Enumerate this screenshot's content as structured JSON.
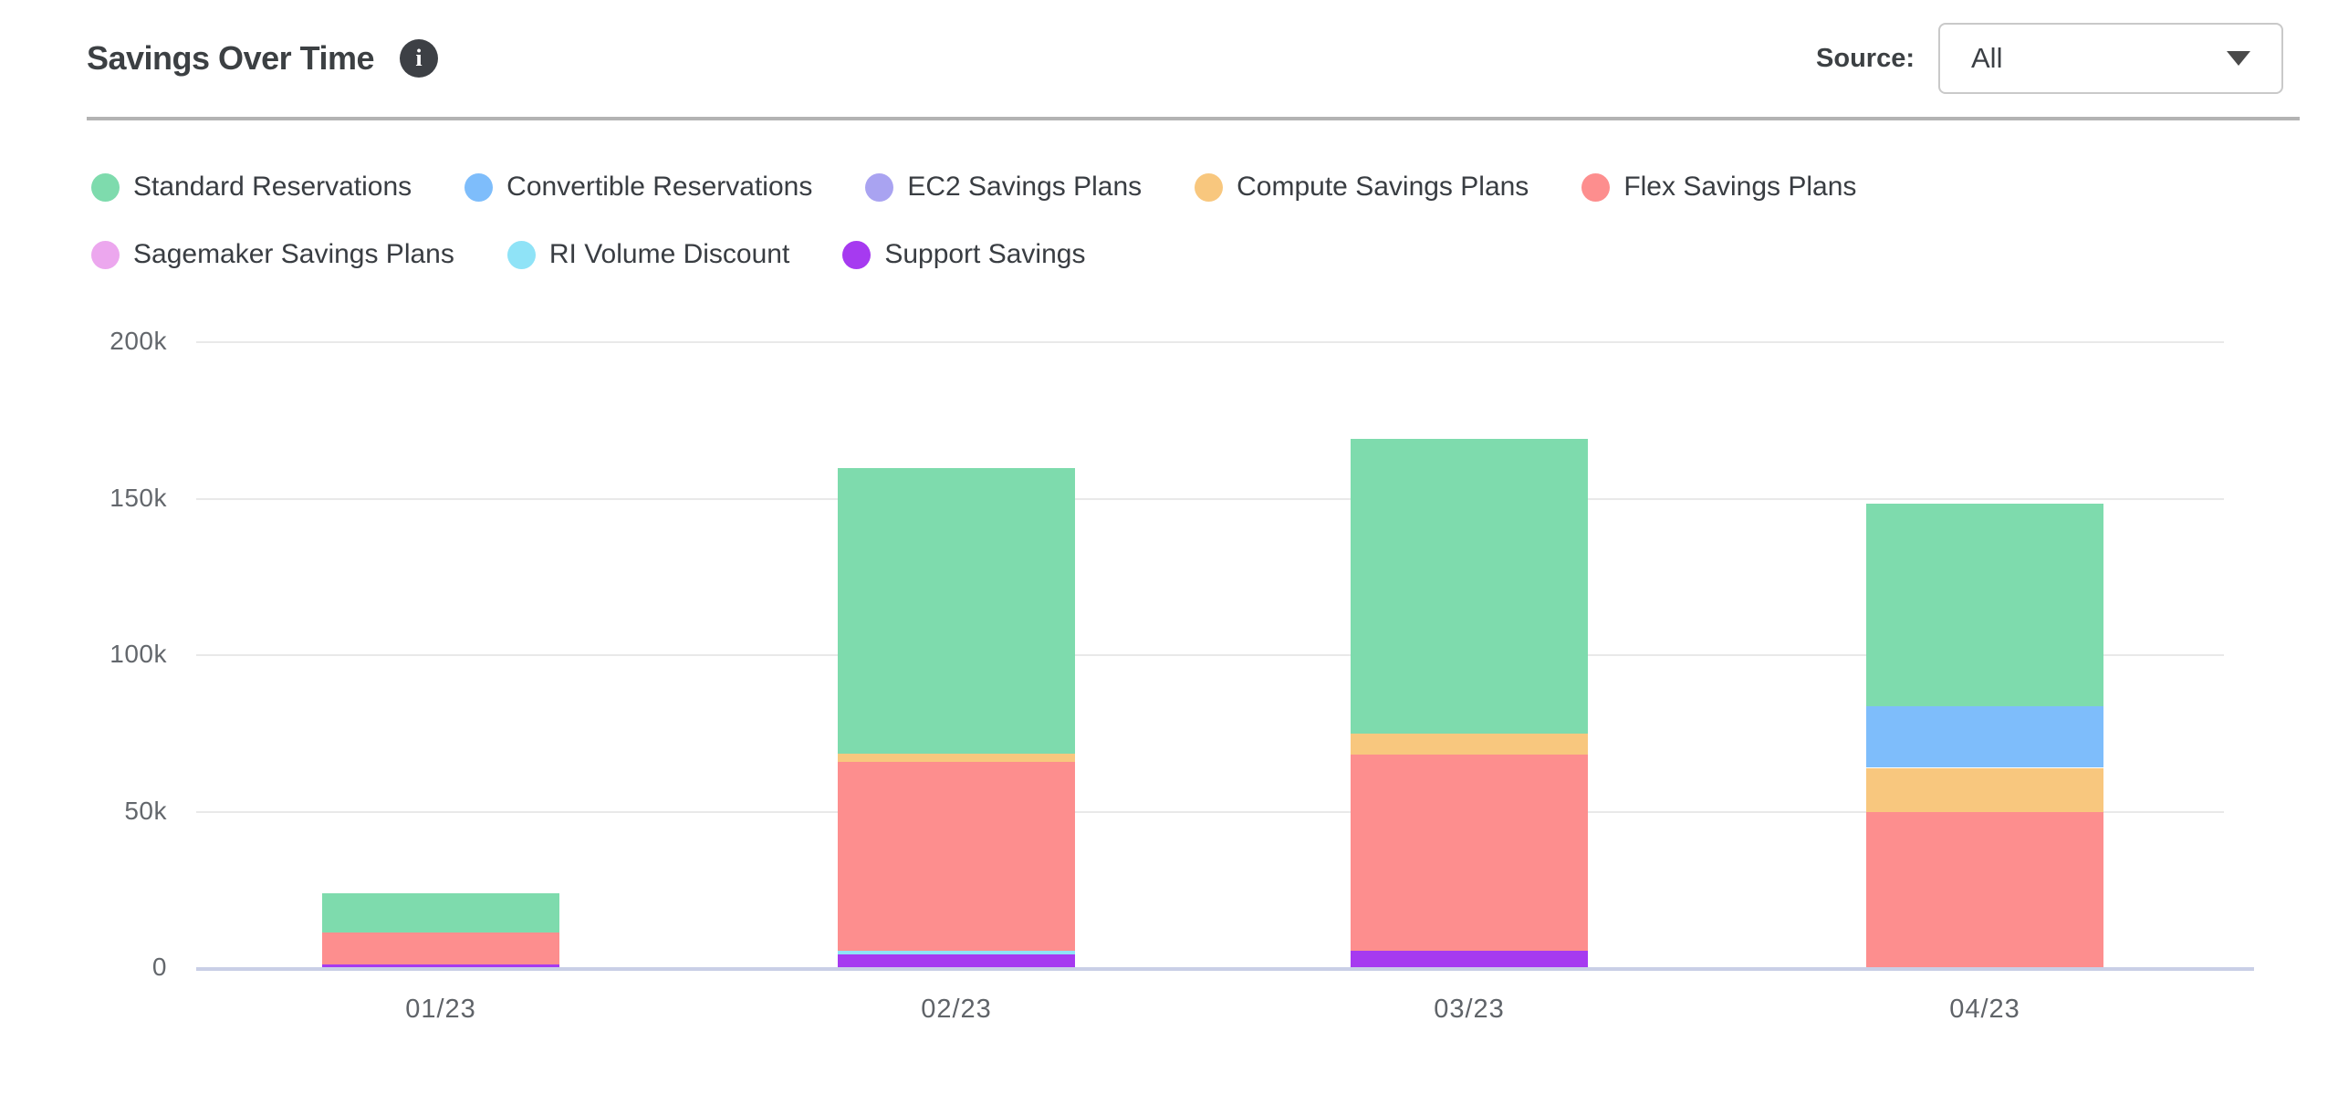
{
  "header": {
    "title": "Savings Over Time",
    "info_icon_glyph": "i",
    "source_label": "Source:",
    "source_value": "All"
  },
  "legend": [
    {
      "label": "Standard Reservations",
      "slug": "standard-reservations",
      "color": "#7edbad"
    },
    {
      "label": "Convertible Reservations",
      "slug": "convertible-reservations",
      "color": "#7ebdfb"
    },
    {
      "label": "EC2 Savings Plans",
      "slug": "ec2-savings-plans",
      "color": "#a9a3f1"
    },
    {
      "label": "Compute Savings Plans",
      "slug": "compute-savings-plans",
      "color": "#f8c77e"
    },
    {
      "label": "Flex Savings Plans",
      "slug": "flex-savings-plans",
      "color": "#fd8e8e"
    },
    {
      "label": "Sagemaker Savings Plans",
      "slug": "sagemaker-savings-plans",
      "color": "#eca7ee"
    },
    {
      "label": "RI Volume Discount",
      "slug": "ri-volume-discount",
      "color": "#8fe3f7"
    },
    {
      "label": "Support Savings",
      "slug": "support-savings",
      "color": "#a63af0"
    }
  ],
  "chart_data": {
    "type": "bar",
    "stacked": true,
    "title": "Savings Over Time",
    "categories": [
      "01/23",
      "02/23",
      "03/23",
      "04/23"
    ],
    "series": [
      {
        "name": "Standard Reservations",
        "color": "#7edbad",
        "values": [
          12600,
          91300,
          94100,
          64900
        ]
      },
      {
        "name": "Convertible Reservations",
        "color": "#7ebdfb",
        "values": [
          0,
          0,
          0,
          19600
        ]
      },
      {
        "name": "EC2 Savings Plans",
        "color": "#a9a3f1",
        "values": [
          0,
          0,
          0,
          0
        ]
      },
      {
        "name": "Compute Savings Plans",
        "color": "#f8c77e",
        "values": [
          0,
          2600,
          6600,
          14000
        ]
      },
      {
        "name": "Flex Savings Plans",
        "color": "#fd8e8e",
        "values": [
          10200,
          60300,
          62800,
          49700
        ]
      },
      {
        "name": "Sagemaker Savings Plans",
        "color": "#eca7ee",
        "values": [
          0,
          0,
          0,
          0
        ]
      },
      {
        "name": "RI Volume Discount",
        "color": "#8fe3f7",
        "values": [
          0,
          1000,
          0,
          0
        ]
      },
      {
        "name": "Support Savings",
        "color": "#a63af0",
        "values": [
          800,
          4200,
          5200,
          0
        ]
      }
    ],
    "stack_order_bottom_to_top": [
      "Support Savings",
      "RI Volume Discount",
      "Sagemaker Savings Plans",
      "Flex Savings Plans",
      "Compute Savings Plans",
      "EC2 Savings Plans",
      "Convertible Reservations",
      "Standard Reservations"
    ],
    "totals": [
      23600,
      159400,
      168700,
      148200
    ],
    "yticks": [
      "200k",
      "150k",
      "100k",
      "50k",
      "0"
    ],
    "ylim": [
      0,
      200000
    ],
    "grid": true,
    "legend_position": "top",
    "style": {
      "gridline_color": "#e9e9e9",
      "baseline_color": "#c9cfe6",
      "tick_color": "#63676c"
    }
  }
}
